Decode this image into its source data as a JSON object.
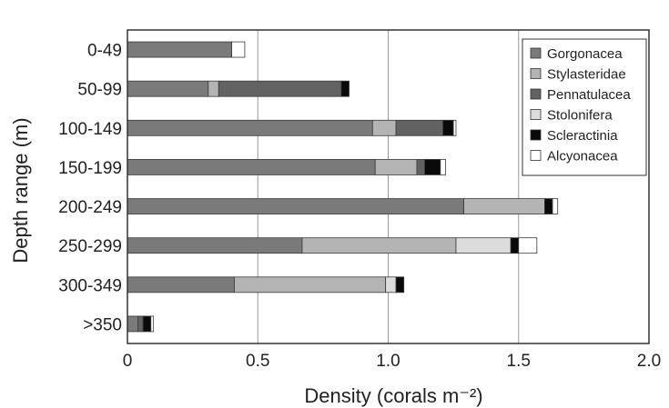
{
  "chart_data": {
    "type": "bar",
    "orientation": "horizontal",
    "stacked": true,
    "xlabel": "Density (corals m⁻²)",
    "ylabel": "Depth range (m)",
    "xlim": [
      0,
      2.0
    ],
    "xticks": [
      "0",
      "0.5",
      "1.0",
      "1.5",
      "2.0"
    ],
    "xtick_values": [
      0,
      0.5,
      1.0,
      1.5,
      2.0
    ],
    "grid": "vertical gridlines at 0.5 intervals",
    "legend_position": "top-right",
    "categories": [
      "0-49",
      "50-99",
      "100-149",
      "150-199",
      "200-249",
      "250-299",
      "300-349",
      ">350"
    ],
    "series": [
      {
        "name": "Gorgonacea",
        "color": "#7a7a7a",
        "values": [
          0.4,
          0.31,
          0.94,
          0.95,
          1.29,
          0.67,
          0.41,
          0.04
        ]
      },
      {
        "name": "Stylasteridae",
        "color": "#b4b4b4",
        "values": [
          0.0,
          0.04,
          0.09,
          0.16,
          0.31,
          0.59,
          0.58,
          0.0
        ]
      },
      {
        "name": "Pennatulacea",
        "color": "#626262",
        "values": [
          0.0,
          0.47,
          0.18,
          0.03,
          0.0,
          0.0,
          0.0,
          0.02
        ]
      },
      {
        "name": "Stolonifera",
        "color": "#dcdcdc",
        "values": [
          0.0,
          0.0,
          0.0,
          0.0,
          0.0,
          0.21,
          0.04,
          0.0
        ]
      },
      {
        "name": "Scleractinia",
        "color": "#0a0a0a",
        "values": [
          0.0,
          0.03,
          0.04,
          0.06,
          0.03,
          0.03,
          0.03,
          0.03
        ]
      },
      {
        "name": "Alcyonacea",
        "color": "#ffffff",
        "values": [
          0.05,
          0.0,
          0.01,
          0.02,
          0.02,
          0.07,
          0.0,
          0.01
        ]
      }
    ]
  }
}
